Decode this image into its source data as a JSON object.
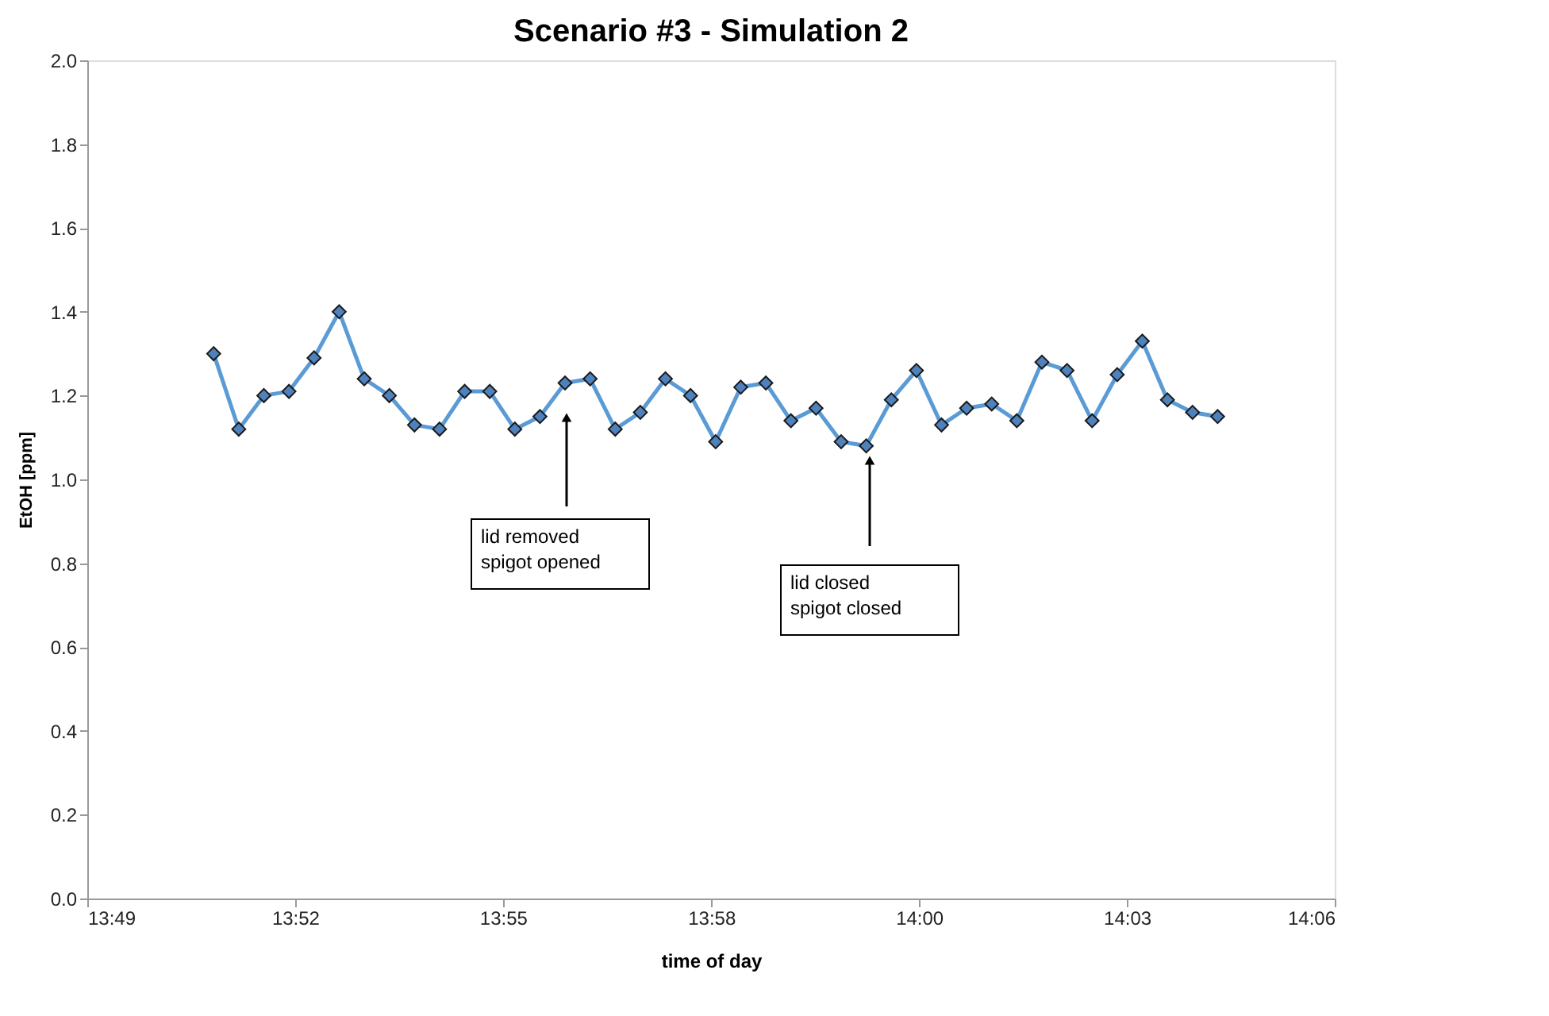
{
  "chart_data": {
    "type": "line",
    "title": "Scenario #3 - Simulation 2",
    "xlabel": "time of day",
    "ylabel": "EtOH [ppm]",
    "x": [
      13.8454,
      13.8511,
      13.8568,
      13.8625,
      13.8682,
      13.8739,
      13.8796,
      13.8853,
      13.891,
      13.8967,
      13.9024,
      13.9081,
      13.9138,
      13.9195,
      13.9252,
      13.9309,
      13.9366,
      13.9423,
      13.948,
      13.9537,
      13.9594,
      13.9651,
      13.9708,
      13.9765,
      13.9822,
      13.9879,
      13.9936,
      13.9993,
      14.005,
      14.0107,
      14.0164,
      14.0221,
      14.0278,
      14.0335,
      14.0392,
      14.0449,
      14.0506,
      14.0563,
      14.062,
      14.0677,
      14.0734
    ],
    "series": [
      {
        "color": "#5b9bd5",
        "values": [
          1.3,
          1.12,
          1.2,
          1.21,
          1.29,
          1.4,
          1.24,
          1.2,
          1.13,
          1.12,
          1.21,
          1.21,
          1.12,
          1.15,
          1.23,
          1.24,
          1.12,
          1.16,
          1.24,
          1.2,
          1.09,
          1.22,
          1.23,
          1.14,
          1.17,
          1.09,
          1.08,
          1.19,
          1.26,
          1.13,
          1.17,
          1.18,
          1.14,
          1.28,
          1.26,
          1.14,
          1.25,
          1.33,
          1.19,
          1.16,
          1.15
        ]
      }
    ],
    "xlim": [
      13.8167,
      14.1
    ],
    "xticks": [
      {
        "value": 13.8167,
        "label": "13:49"
      },
      {
        "value": 13.8639,
        "label": "13:52"
      },
      {
        "value": 13.9111,
        "label": "13:55"
      },
      {
        "value": 13.9584,
        "label": "13:58"
      },
      {
        "value": 14.0056,
        "label": "14:00"
      },
      {
        "value": 14.0528,
        "label": "14:03"
      },
      {
        "value": 14.1,
        "label": "14:06"
      }
    ],
    "ylim": [
      0,
      2
    ],
    "yticks": [
      {
        "value": 0,
        "label": "0.0"
      },
      0.2,
      0.4,
      0.6,
      0.8,
      {
        "value": 1,
        "label": "1.0"
      },
      1.2,
      1.4,
      1.6,
      1.8,
      {
        "value": 2,
        "label": "2.0"
      }
    ],
    "grid": false,
    "legend": false,
    "marker": "diamond",
    "line_style": "solid",
    "annotations": [
      "lid removed\nspigot opened",
      "lid closed\nspigot closed"
    ]
  }
}
